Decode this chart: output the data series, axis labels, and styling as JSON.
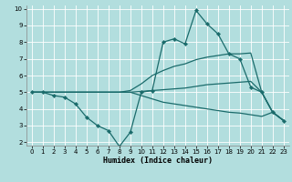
{
  "xlabel": "Humidex (Indice chaleur)",
  "bg_color": "#b2dede",
  "grid_color": "#ffffff",
  "line_color": "#1a6b6b",
  "xlim": [
    -0.5,
    23.5
  ],
  "ylim": [
    1.8,
    10.2
  ],
  "xticks": [
    0,
    1,
    2,
    3,
    4,
    5,
    6,
    7,
    8,
    9,
    10,
    11,
    12,
    13,
    14,
    15,
    16,
    17,
    18,
    19,
    20,
    21,
    22,
    23
  ],
  "yticks": [
    2,
    3,
    4,
    5,
    6,
    7,
    8,
    9,
    10
  ],
  "series": [
    {
      "x": [
        0,
        1,
        2,
        3,
        4,
        5,
        6,
        7,
        8,
        9,
        10,
        11,
        12,
        13,
        14,
        15,
        16,
        17,
        18,
        19,
        20,
        21,
        22,
        23
      ],
      "y": [
        5.0,
        5.0,
        4.8,
        4.7,
        4.3,
        3.5,
        3.0,
        2.7,
        1.75,
        2.6,
        5.0,
        5.1,
        8.0,
        8.2,
        7.9,
        9.9,
        9.1,
        8.5,
        7.3,
        7.0,
        5.3,
        5.0,
        3.8,
        3.3
      ],
      "marker": true
    },
    {
      "x": [
        0,
        1,
        2,
        3,
        4,
        5,
        6,
        7,
        8,
        9,
        10,
        11,
        12,
        13,
        14,
        15,
        16,
        17,
        18,
        19,
        20,
        21,
        22,
        23
      ],
      "y": [
        5.0,
        5.0,
        5.0,
        5.0,
        5.0,
        5.0,
        5.0,
        5.0,
        5.0,
        5.1,
        5.5,
        6.0,
        6.3,
        6.55,
        6.7,
        6.95,
        7.1,
        7.2,
        7.3,
        7.3,
        7.35,
        5.0,
        3.8,
        3.3
      ],
      "marker": false
    },
    {
      "x": [
        0,
        1,
        2,
        3,
        4,
        5,
        6,
        7,
        8,
        9,
        10,
        11,
        12,
        13,
        14,
        15,
        16,
        17,
        18,
        19,
        20,
        21,
        22,
        23
      ],
      "y": [
        5.0,
        5.0,
        5.0,
        5.0,
        5.0,
        5.0,
        5.0,
        5.0,
        5.0,
        5.0,
        5.05,
        5.1,
        5.15,
        5.2,
        5.25,
        5.35,
        5.45,
        5.5,
        5.55,
        5.6,
        5.65,
        5.0,
        3.8,
        3.3
      ],
      "marker": false
    },
    {
      "x": [
        0,
        1,
        2,
        3,
        4,
        5,
        6,
        7,
        8,
        9,
        10,
        11,
        12,
        13,
        14,
        15,
        16,
        17,
        18,
        19,
        20,
        21,
        22,
        23
      ],
      "y": [
        5.0,
        5.0,
        5.0,
        5.0,
        5.0,
        5.0,
        5.0,
        5.0,
        5.0,
        5.0,
        4.8,
        4.6,
        4.4,
        4.3,
        4.2,
        4.1,
        4.0,
        3.9,
        3.8,
        3.75,
        3.65,
        3.55,
        3.8,
        3.3
      ],
      "marker": false
    }
  ]
}
